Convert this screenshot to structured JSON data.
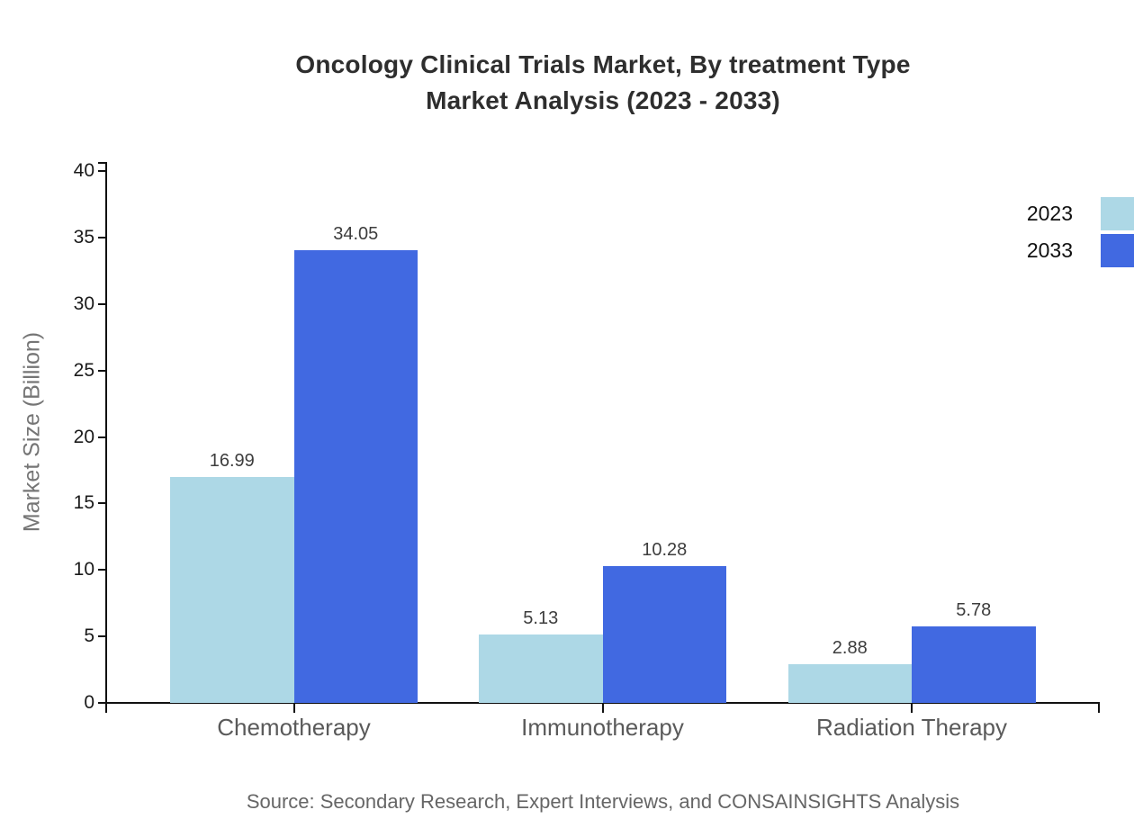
{
  "title": {
    "line1": "Oncology Clinical Trials Market, By treatment Type",
    "line2": "Market Analysis (2023 - 2033)"
  },
  "source": "Source: Secondary Research, Expert Interviews, and CONSAINSIGHTS Analysis",
  "chart_data": {
    "type": "bar",
    "title": "Oncology Clinical Trials Market, By treatment Type Market Analysis (2023 - 2033)",
    "categories": [
      "Chemotherapy",
      "Immunotherapy",
      "Radiation Therapy"
    ],
    "series": [
      {
        "name": "2023",
        "color": "#ADD8E6",
        "values": [
          16.99,
          5.13,
          2.88
        ]
      },
      {
        "name": "2033",
        "color": "#4169E1",
        "values": [
          34.05,
          10.28,
          5.78
        ]
      }
    ],
    "xlabel": "",
    "ylabel": "Market Size (Billion)",
    "ylim": [
      0,
      40
    ],
    "yticks": [
      0,
      5,
      10,
      15,
      20,
      25,
      30,
      35,
      40
    ],
    "grid": false,
    "legend_position": "top-right",
    "value_labels": true,
    "value_label_format": "2-decimals",
    "axis_color": "#111111"
  }
}
